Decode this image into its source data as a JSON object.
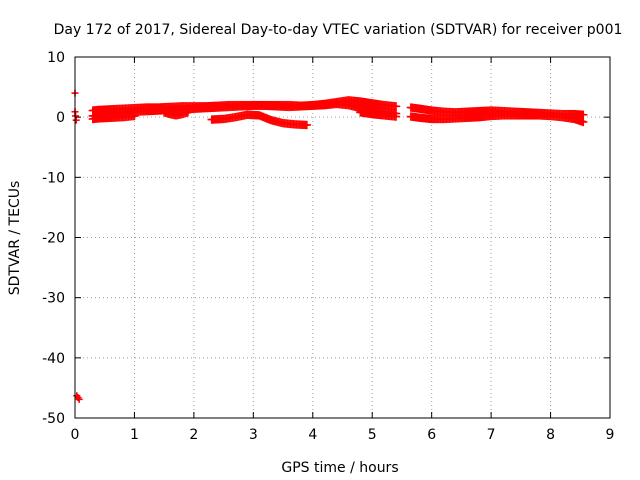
{
  "chart_data": {
    "type": "scatter",
    "title": "Day 172 of 2017, Sidereal Day-to-day VTEC variation (SDTVAR) for receiver p001",
    "xlabel": "GPS time / hours",
    "ylabel": "SDTVAR / TECUs",
    "xlim": [
      0,
      9
    ],
    "ylim": [
      -50,
      10
    ],
    "xticks": [
      0,
      1,
      2,
      3,
      4,
      5,
      6,
      7,
      8,
      9
    ],
    "yticks": [
      -50,
      -40,
      -30,
      -20,
      -10,
      0,
      10
    ],
    "grid": true,
    "legend": "none",
    "marker": "plus",
    "color": "#ff0000",
    "series": [
      {
        "x": [
          0.0,
          0.0,
          0.01,
          0.02,
          0.03,
          0.05,
          0.07
        ],
        "y": [
          4.0,
          0.9,
          0.2,
          -0.5,
          -46.3,
          -46.6,
          -46.9
        ]
      },
      {
        "x": [
          0.3,
          0.4,
          0.6,
          0.8,
          1.0,
          1.2,
          1.4,
          1.6,
          1.8,
          2.0,
          2.2,
          2.4,
          2.6,
          2.8,
          3.0,
          3.2,
          3.4,
          3.6,
          3.8,
          4.0,
          4.2,
          4.4,
          4.6,
          4.8,
          5.0,
          5.2,
          5.4
        ],
        "y": [
          1.1,
          1.2,
          1.3,
          1.4,
          1.5,
          1.6,
          1.6,
          1.7,
          1.8,
          1.8,
          1.8,
          1.9,
          2.0,
          2.0,
          2.0,
          2.0,
          2.0,
          2.0,
          1.9,
          2.0,
          2.2,
          2.5,
          2.8,
          2.6,
          2.3,
          2.0,
          1.8
        ]
      },
      {
        "x": [
          0.3,
          0.4,
          0.6,
          0.8,
          1.0,
          1.2,
          1.4,
          1.6,
          1.8,
          2.0,
          2.2,
          2.4,
          2.6,
          2.8,
          3.0,
          3.2,
          3.4,
          3.6,
          3.8,
          4.0,
          4.2,
          4.4,
          4.6,
          4.8,
          5.0,
          5.2,
          5.4
        ],
        "y": [
          0.2,
          0.3,
          0.5,
          0.7,
          0.9,
          1.0,
          1.1,
          1.2,
          1.3,
          1.4,
          1.5,
          1.6,
          1.7,
          1.8,
          1.9,
          1.9,
          1.8,
          1.7,
          1.8,
          1.9,
          2.0,
          2.2,
          2.0,
          1.5,
          1.1,
          0.9,
          0.6
        ]
      },
      {
        "x": [
          0.3,
          0.4,
          0.6,
          0.8,
          1.0
        ],
        "y": [
          -0.3,
          -0.2,
          -0.1,
          0.0,
          0.2
        ]
      },
      {
        "x": [
          1.5,
          1.6,
          1.7,
          1.8,
          1.9
        ],
        "y": [
          0.8,
          0.5,
          0.3,
          0.5,
          0.8
        ]
      },
      {
        "x": [
          2.3,
          2.5,
          2.7,
          2.9,
          3.1,
          3.3,
          3.5,
          3.7,
          3.9
        ],
        "y": [
          -0.4,
          -0.3,
          0.0,
          0.4,
          0.3,
          -0.5,
          -1.0,
          -1.2,
          -1.3
        ]
      },
      {
        "x": [
          4.8,
          5.0,
          5.2,
          5.4
        ],
        "y": [
          0.8,
          0.5,
          0.3,
          0.1
        ]
      },
      {
        "x": [
          5.65,
          5.8,
          6.0,
          6.2,
          6.4,
          6.6,
          6.8,
          7.0,
          7.2,
          7.4,
          7.6,
          7.8,
          8.0,
          8.2,
          8.4,
          8.55
        ],
        "y": [
          1.6,
          1.4,
          1.1,
          0.9,
          0.8,
          0.9,
          1.0,
          1.1,
          1.0,
          0.9,
          0.8,
          0.7,
          0.6,
          0.5,
          0.5,
          0.4
        ]
      },
      {
        "x": [
          5.65,
          5.8,
          6.0,
          6.2,
          6.4,
          6.6,
          6.8,
          7.0,
          7.2,
          7.4,
          7.6,
          7.8,
          8.0,
          8.2,
          8.4,
          8.55
        ],
        "y": [
          0.1,
          -0.1,
          -0.3,
          -0.3,
          -0.2,
          -0.1,
          0.0,
          0.2,
          0.3,
          0.3,
          0.3,
          0.3,
          0.2,
          0.0,
          -0.3,
          -0.8
        ]
      }
    ]
  }
}
